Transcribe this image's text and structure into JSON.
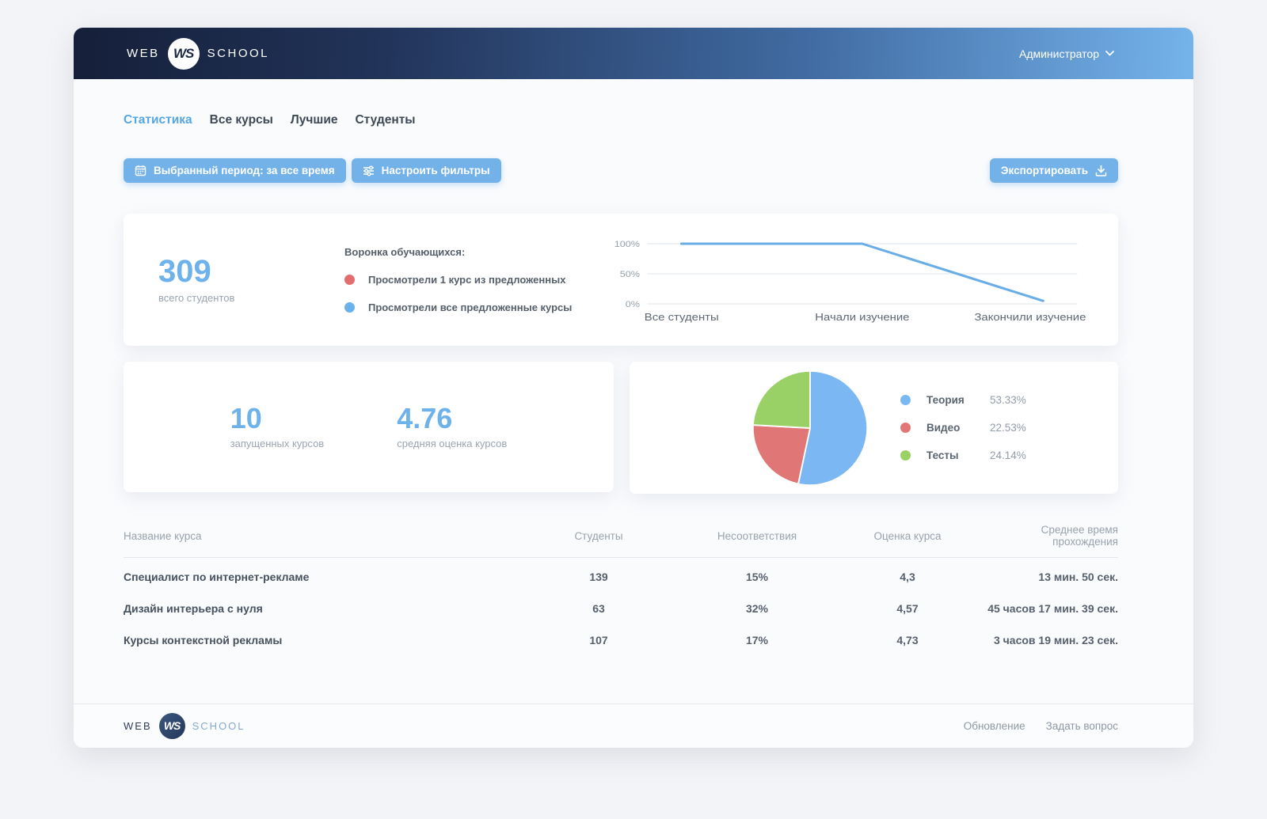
{
  "header": {
    "logo": {
      "web": "WEB",
      "mark": "WS",
      "school": "SCHOOL"
    },
    "user_menu": "Администратор"
  },
  "tabs": [
    {
      "label": "Статистика",
      "active": true
    },
    {
      "label": "Все курсы",
      "active": false
    },
    {
      "label": "Лучшие",
      "active": false
    },
    {
      "label": "Студенты",
      "active": false
    }
  ],
  "toolbar": {
    "period_button": "Выбранный период: за все время",
    "filters_button": "Настроить фильтры",
    "export_button": "Экспортировать"
  },
  "stats": {
    "total_students": {
      "value": "309",
      "label": "всего студентов"
    },
    "courses_running": {
      "value": "10",
      "label": "запущенных курсов"
    },
    "avg_rating": {
      "value": "4.76",
      "label": "средняя оценка курсов"
    }
  },
  "funnel": {
    "title": "Воронка обучающихся:",
    "legend": [
      {
        "label": "Просмотрели 1 курс из предложенных",
        "color": "#e46d6d"
      },
      {
        "label": "Просмотрели все предложенные курсы",
        "color": "#6cb2ea"
      }
    ]
  },
  "chart_data": [
    {
      "type": "line",
      "title": "Воронка обучающихся",
      "categories": [
        "Все студенты",
        "Начали изучение",
        "Закончили изучение"
      ],
      "values": [
        100,
        100,
        5
      ],
      "yticks": [
        "100%",
        "50%",
        "0%"
      ],
      "ylim": [
        0,
        100
      ],
      "line_color": "#69ade7",
      "grid": true,
      "legend_position": "left"
    },
    {
      "type": "pie",
      "labels": [
        "Теория",
        "Видео",
        "Тесты"
      ],
      "values": [
        53.33,
        22.53,
        24.14
      ],
      "display_values": [
        "53.33%",
        "22.53%",
        "24.14%"
      ],
      "colors": [
        "#7ab7f3",
        "#e17676",
        "#9ad166"
      ],
      "legend_position": "right"
    }
  ],
  "table": {
    "headers": [
      "Название курса",
      "Студенты",
      "Несоответствия",
      "Оценка курса",
      "Среднее время прохождения"
    ],
    "rows": [
      [
        "Специалист по интернет-рекламе",
        "139",
        "15%",
        "4,3",
        "13 мин. 50 сек."
      ],
      [
        "Дизайн интерьера с нуля",
        "63",
        "32%",
        "4,57",
        "45 часов 17 мин. 39 сек."
      ],
      [
        "Курсы контекстной рекламы",
        "107",
        "17%",
        "4,73",
        "3 часов 19 мин. 23 сек."
      ]
    ]
  },
  "footer": {
    "logo": {
      "web": "WEB",
      "mark": "WS",
      "school": "SCHOOL"
    },
    "links": [
      "Обновление",
      "Задать вопрос"
    ]
  },
  "colors": {
    "accent_blue": "#6db2ea",
    "button_blue": "#73b2e9",
    "header_gradient_start": "#151f39",
    "header_gradient_end": "#75b3eb",
    "red": "#e46d6d",
    "green": "#9ad166",
    "text_dark": "#47525f",
    "text_gray": "#98a2ad"
  }
}
